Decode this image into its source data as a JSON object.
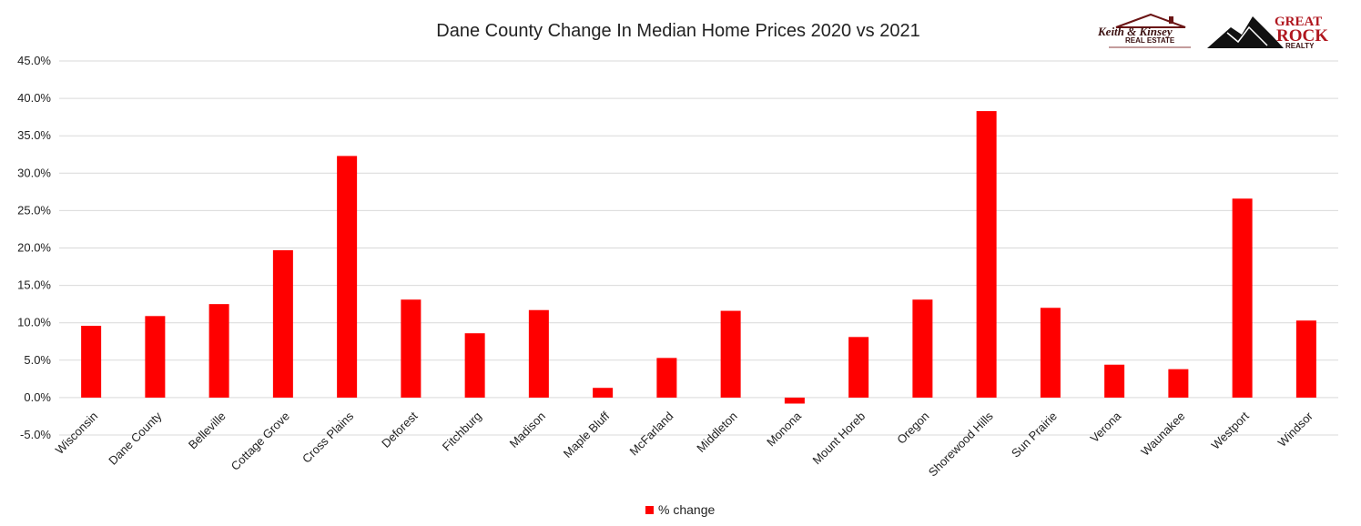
{
  "chart_data": {
    "type": "bar",
    "title": "Dane County Change In Median Home Prices 2020 vs 2021",
    "categories": [
      "Wisconsin",
      "Dane County",
      "Belleville",
      "Cottage Grove",
      "Cross Plains",
      "Deforest",
      "Fitchburg",
      "Madison",
      "Maple Bluff",
      "McFarland",
      "Middleton",
      "Monona",
      "Mount Horeb",
      "Oregon",
      "Shorewood Hills",
      "Sun Prairie",
      "Verona",
      "Waunakee",
      "Westport",
      "Windsor"
    ],
    "series": [
      {
        "name": "% change",
        "color": "#ff0000",
        "values": [
          9.6,
          10.9,
          12.5,
          19.7,
          32.3,
          13.1,
          8.6,
          11.7,
          1.3,
          5.3,
          11.6,
          -0.8,
          8.1,
          13.1,
          38.3,
          12.0,
          4.4,
          3.8,
          26.6,
          10.3
        ]
      }
    ],
    "ylim": [
      -5,
      45
    ],
    "yticks": [
      -5,
      0,
      5,
      10,
      15,
      20,
      25,
      30,
      35,
      40,
      45
    ],
    "ytick_format": "percent_1dp",
    "grid": true,
    "legend": "bottom-center",
    "xlabel": "",
    "ylabel": ""
  },
  "logos": {
    "keith_kinsey": {
      "line1": "Keith & Kinsey",
      "line2": "REAL ESTATE"
    },
    "great_rock": {
      "line1": "GREAT",
      "line2": "ROCK",
      "line3": "REALTY"
    }
  }
}
